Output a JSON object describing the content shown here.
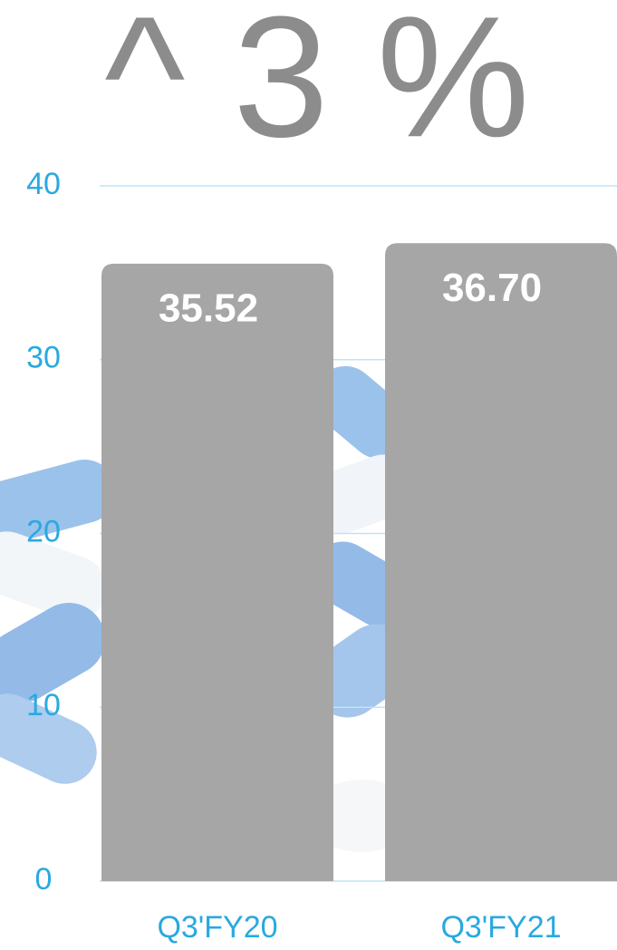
{
  "chart_data": {
    "type": "bar",
    "title": "^ 3 %",
    "categories": [
      "Q3'FY20",
      "Q3'FY21"
    ],
    "values": [
      35.52,
      36.7
    ],
    "value_labels": [
      "35.52",
      "36.70"
    ],
    "color": "#a6a6a6",
    "ylim": [
      0,
      40
    ],
    "yticks": [
      0,
      10,
      20,
      30,
      40
    ],
    "grid": true
  }
}
